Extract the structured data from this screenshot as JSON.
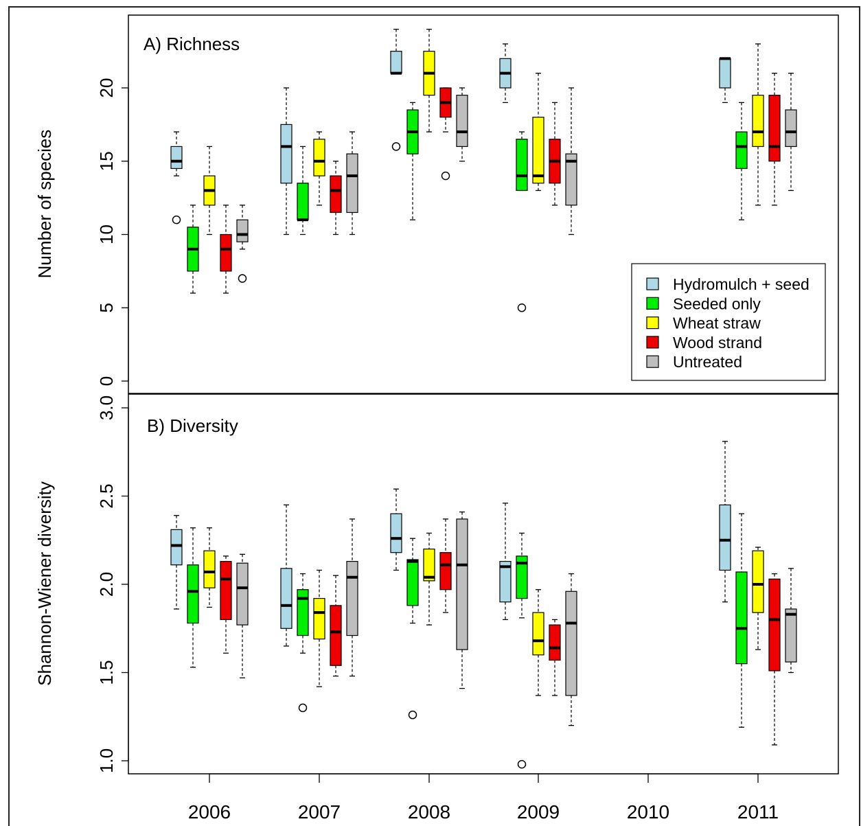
{
  "treatment_colors": [
    "#add8e6",
    "#00ee00",
    "#ffff00",
    "#ee0000",
    "#bebebe"
  ],
  "chart_data": [
    {
      "type": "box",
      "title": "A) Richness",
      "xlabel": "",
      "ylabel": "Number of species",
      "ylim": [
        0,
        24.5
      ],
      "yticks": [
        "0",
        "5",
        "10",
        "15",
        "20"
      ],
      "ytick_values": [
        0,
        5,
        10,
        15,
        20
      ],
      "categories": [
        "2006",
        "2007",
        "2008",
        "2009",
        "2010",
        "2011"
      ],
      "legend_position": "bottom-right",
      "series": [
        {
          "name": "Hydromulch + seed",
          "color": "#add8e6",
          "boxes": [
            {
              "year": "2006",
              "min": 14,
              "q1": 14.5,
              "median": 15,
              "q3": 16,
              "max": 17,
              "outliers": [
                11
              ]
            },
            {
              "year": "2007",
              "min": 10,
              "q1": 13.5,
              "median": 16,
              "q3": 17.5,
              "max": 20,
              "outliers": []
            },
            {
              "year": "2008",
              "min": 21,
              "q1": 21,
              "median": 21,
              "q3": 22.5,
              "max": 24,
              "outliers": [
                16
              ]
            },
            {
              "year": "2009",
              "min": 19,
              "q1": 20,
              "median": 21,
              "q3": 22,
              "max": 23,
              "outliers": []
            },
            {
              "year": "2011",
              "min": 19,
              "q1": 20,
              "median": 22,
              "q3": 22,
              "max": 22,
              "outliers": []
            }
          ]
        },
        {
          "name": "Seeded only",
          "color": "#00ee00",
          "boxes": [
            {
              "year": "2006",
              "min": 6,
              "q1": 7.5,
              "median": 9,
              "q3": 10.5,
              "max": 12,
              "outliers": []
            },
            {
              "year": "2007",
              "min": 10,
              "q1": 11,
              "median": 11,
              "q3": 13.5,
              "max": 16,
              "outliers": []
            },
            {
              "year": "2008",
              "min": 11,
              "q1": 15.5,
              "median": 17,
              "q3": 18.5,
              "max": 19,
              "outliers": []
            },
            {
              "year": "2009",
              "min": 13,
              "q1": 13,
              "median": 14,
              "q3": 16.5,
              "max": 17,
              "outliers": [
                5
              ]
            },
            {
              "year": "2011",
              "min": 11,
              "q1": 14.5,
              "median": 16,
              "q3": 17,
              "max": 19,
              "outliers": []
            }
          ]
        },
        {
          "name": "Wheat straw",
          "color": "#ffff00",
          "boxes": [
            {
              "year": "2006",
              "min": 10,
              "q1": 12,
              "median": 13,
              "q3": 14,
              "max": 16,
              "outliers": []
            },
            {
              "year": "2007",
              "min": 12,
              "q1": 14,
              "median": 15,
              "q3": 16.5,
              "max": 17,
              "outliers": []
            },
            {
              "year": "2008",
              "min": 17,
              "q1": 19.5,
              "median": 21,
              "q3": 22.5,
              "max": 24,
              "outliers": []
            },
            {
              "year": "2009",
              "min": 13,
              "q1": 13.5,
              "median": 14,
              "q3": 18,
              "max": 21,
              "outliers": []
            },
            {
              "year": "2011",
              "min": 12,
              "q1": 16,
              "median": 17,
              "q3": 19.5,
              "max": 23,
              "outliers": []
            }
          ]
        },
        {
          "name": "Wood strand",
          "color": "#ee0000",
          "boxes": [
            {
              "year": "2006",
              "min": 6,
              "q1": 7.5,
              "median": 9,
              "q3": 10,
              "max": 12,
              "outliers": []
            },
            {
              "year": "2007",
              "min": 10,
              "q1": 11.5,
              "median": 13,
              "q3": 14,
              "max": 15,
              "outliers": []
            },
            {
              "year": "2008",
              "min": 17,
              "q1": 18,
              "median": 19,
              "q3": 20,
              "max": 20,
              "outliers": [
                14
              ]
            },
            {
              "year": "2009",
              "min": 12,
              "q1": 13.5,
              "median": 15,
              "q3": 16.5,
              "max": 19,
              "outliers": []
            },
            {
              "year": "2011",
              "min": 12,
              "q1": 15,
              "median": 16,
              "q3": 19.5,
              "max": 21,
              "outliers": []
            }
          ]
        },
        {
          "name": "Untreated",
          "color": "#bebebe",
          "boxes": [
            {
              "year": "2006",
              "min": 9,
              "q1": 9.5,
              "median": 10,
              "q3": 11,
              "max": 12,
              "outliers": [
                7
              ]
            },
            {
              "year": "2007",
              "min": 10,
              "q1": 11.5,
              "median": 14,
              "q3": 15.5,
              "max": 17,
              "outliers": []
            },
            {
              "year": "2008",
              "min": 15,
              "q1": 16,
              "median": 17,
              "q3": 19.5,
              "max": 20,
              "outliers": []
            },
            {
              "year": "2009",
              "min": 10,
              "q1": 12,
              "median": 15,
              "q3": 15.5,
              "max": 20,
              "outliers": []
            },
            {
              "year": "2011",
              "min": 13,
              "q1": 16,
              "median": 17,
              "q3": 18.5,
              "max": 21,
              "outliers": []
            }
          ]
        }
      ]
    },
    {
      "type": "box",
      "title": "B) Diversity",
      "xlabel": "",
      "ylabel": "Shannon-Wiener diversity",
      "ylim": [
        0.93,
        3.08
      ],
      "yticks": [
        "1.0",
        "1.5",
        "2.0",
        "2.5",
        "3.0"
      ],
      "ytick_values": [
        1.0,
        1.5,
        2.0,
        2.5,
        3.0
      ],
      "categories": [
        "2006",
        "2007",
        "2008",
        "2009",
        "2010",
        "2011"
      ],
      "series": [
        {
          "name": "Hydromulch + seed",
          "color": "#add8e6",
          "boxes": [
            {
              "year": "2006",
              "min": 1.86,
              "q1": 2.11,
              "median": 2.22,
              "q3": 2.31,
              "max": 2.39,
              "outliers": []
            },
            {
              "year": "2007",
              "min": 1.65,
              "q1": 1.75,
              "median": 1.88,
              "q3": 2.09,
              "max": 2.45,
              "outliers": []
            },
            {
              "year": "2008",
              "min": 2.08,
              "q1": 2.18,
              "median": 2.26,
              "q3": 2.4,
              "max": 2.54,
              "outliers": []
            },
            {
              "year": "2009",
              "min": 1.8,
              "q1": 1.9,
              "median": 2.1,
              "q3": 2.13,
              "max": 2.46,
              "outliers": []
            },
            {
              "year": "2011",
              "min": 1.9,
              "q1": 2.08,
              "median": 2.25,
              "q3": 2.45,
              "max": 2.81,
              "outliers": []
            }
          ]
        },
        {
          "name": "Seeded only",
          "color": "#00ee00",
          "boxes": [
            {
              "year": "2006",
              "min": 1.53,
              "q1": 1.78,
              "median": 1.96,
              "q3": 2.11,
              "max": 2.32,
              "outliers": []
            },
            {
              "year": "2007",
              "min": 1.61,
              "q1": 1.71,
              "median": 1.92,
              "q3": 1.97,
              "max": 2.06,
              "outliers": [
                1.3
              ]
            },
            {
              "year": "2008",
              "min": 1.78,
              "q1": 1.88,
              "median": 2.13,
              "q3": 2.14,
              "max": 2.26,
              "outliers": [
                1.26
              ]
            },
            {
              "year": "2009",
              "min": 1.81,
              "q1": 1.92,
              "median": 2.12,
              "q3": 2.16,
              "max": 2.29,
              "outliers": [
                0.98
              ]
            },
            {
              "year": "2011",
              "min": 1.19,
              "q1": 1.55,
              "median": 1.75,
              "q3": 2.07,
              "max": 2.4,
              "outliers": []
            }
          ]
        },
        {
          "name": "Wheat straw",
          "color": "#ffff00",
          "boxes": [
            {
              "year": "2006",
              "min": 1.87,
              "q1": 1.98,
              "median": 2.07,
              "q3": 2.19,
              "max": 2.32,
              "outliers": []
            },
            {
              "year": "2007",
              "min": 1.42,
              "q1": 1.69,
              "median": 1.84,
              "q3": 1.92,
              "max": 2.08,
              "outliers": []
            },
            {
              "year": "2008",
              "min": 1.77,
              "q1": 2.02,
              "median": 2.04,
              "q3": 2.2,
              "max": 2.29,
              "outliers": []
            },
            {
              "year": "2009",
              "min": 1.37,
              "q1": 1.6,
              "median": 1.68,
              "q3": 1.84,
              "max": 1.97,
              "outliers": []
            },
            {
              "year": "2011",
              "min": 1.63,
              "q1": 1.84,
              "median": 2.0,
              "q3": 2.19,
              "max": 2.21,
              "outliers": []
            }
          ]
        },
        {
          "name": "Wood strand",
          "color": "#ee0000",
          "boxes": [
            {
              "year": "2006",
              "min": 1.61,
              "q1": 1.8,
              "median": 2.03,
              "q3": 2.13,
              "max": 2.16,
              "outliers": []
            },
            {
              "year": "2007",
              "min": 1.48,
              "q1": 1.54,
              "median": 1.73,
              "q3": 1.88,
              "max": 2.05,
              "outliers": []
            },
            {
              "year": "2008",
              "min": 1.84,
              "q1": 1.97,
              "median": 2.11,
              "q3": 2.18,
              "max": 2.37,
              "outliers": []
            },
            {
              "year": "2009",
              "min": 1.37,
              "q1": 1.57,
              "median": 1.64,
              "q3": 1.77,
              "max": 1.8,
              "outliers": []
            },
            {
              "year": "2011",
              "min": 1.09,
              "q1": 1.51,
              "median": 1.8,
              "q3": 2.03,
              "max": 2.06,
              "outliers": []
            }
          ]
        },
        {
          "name": "Untreated",
          "color": "#bebebe",
          "boxes": [
            {
              "year": "2006",
              "min": 1.47,
              "q1": 1.77,
              "median": 1.98,
              "q3": 2.12,
              "max": 2.17,
              "outliers": []
            },
            {
              "year": "2007",
              "min": 1.48,
              "q1": 1.71,
              "median": 2.04,
              "q3": 2.13,
              "max": 2.37,
              "outliers": []
            },
            {
              "year": "2008",
              "min": 1.41,
              "q1": 1.63,
              "median": 2.11,
              "q3": 2.37,
              "max": 2.41,
              "outliers": []
            },
            {
              "year": "2009",
              "min": 1.2,
              "q1": 1.37,
              "median": 1.78,
              "q3": 1.96,
              "max": 2.06,
              "outliers": []
            },
            {
              "year": "2011",
              "min": 1.5,
              "q1": 1.56,
              "median": 1.83,
              "q3": 1.86,
              "max": 2.09,
              "outliers": []
            }
          ]
        }
      ]
    }
  ]
}
